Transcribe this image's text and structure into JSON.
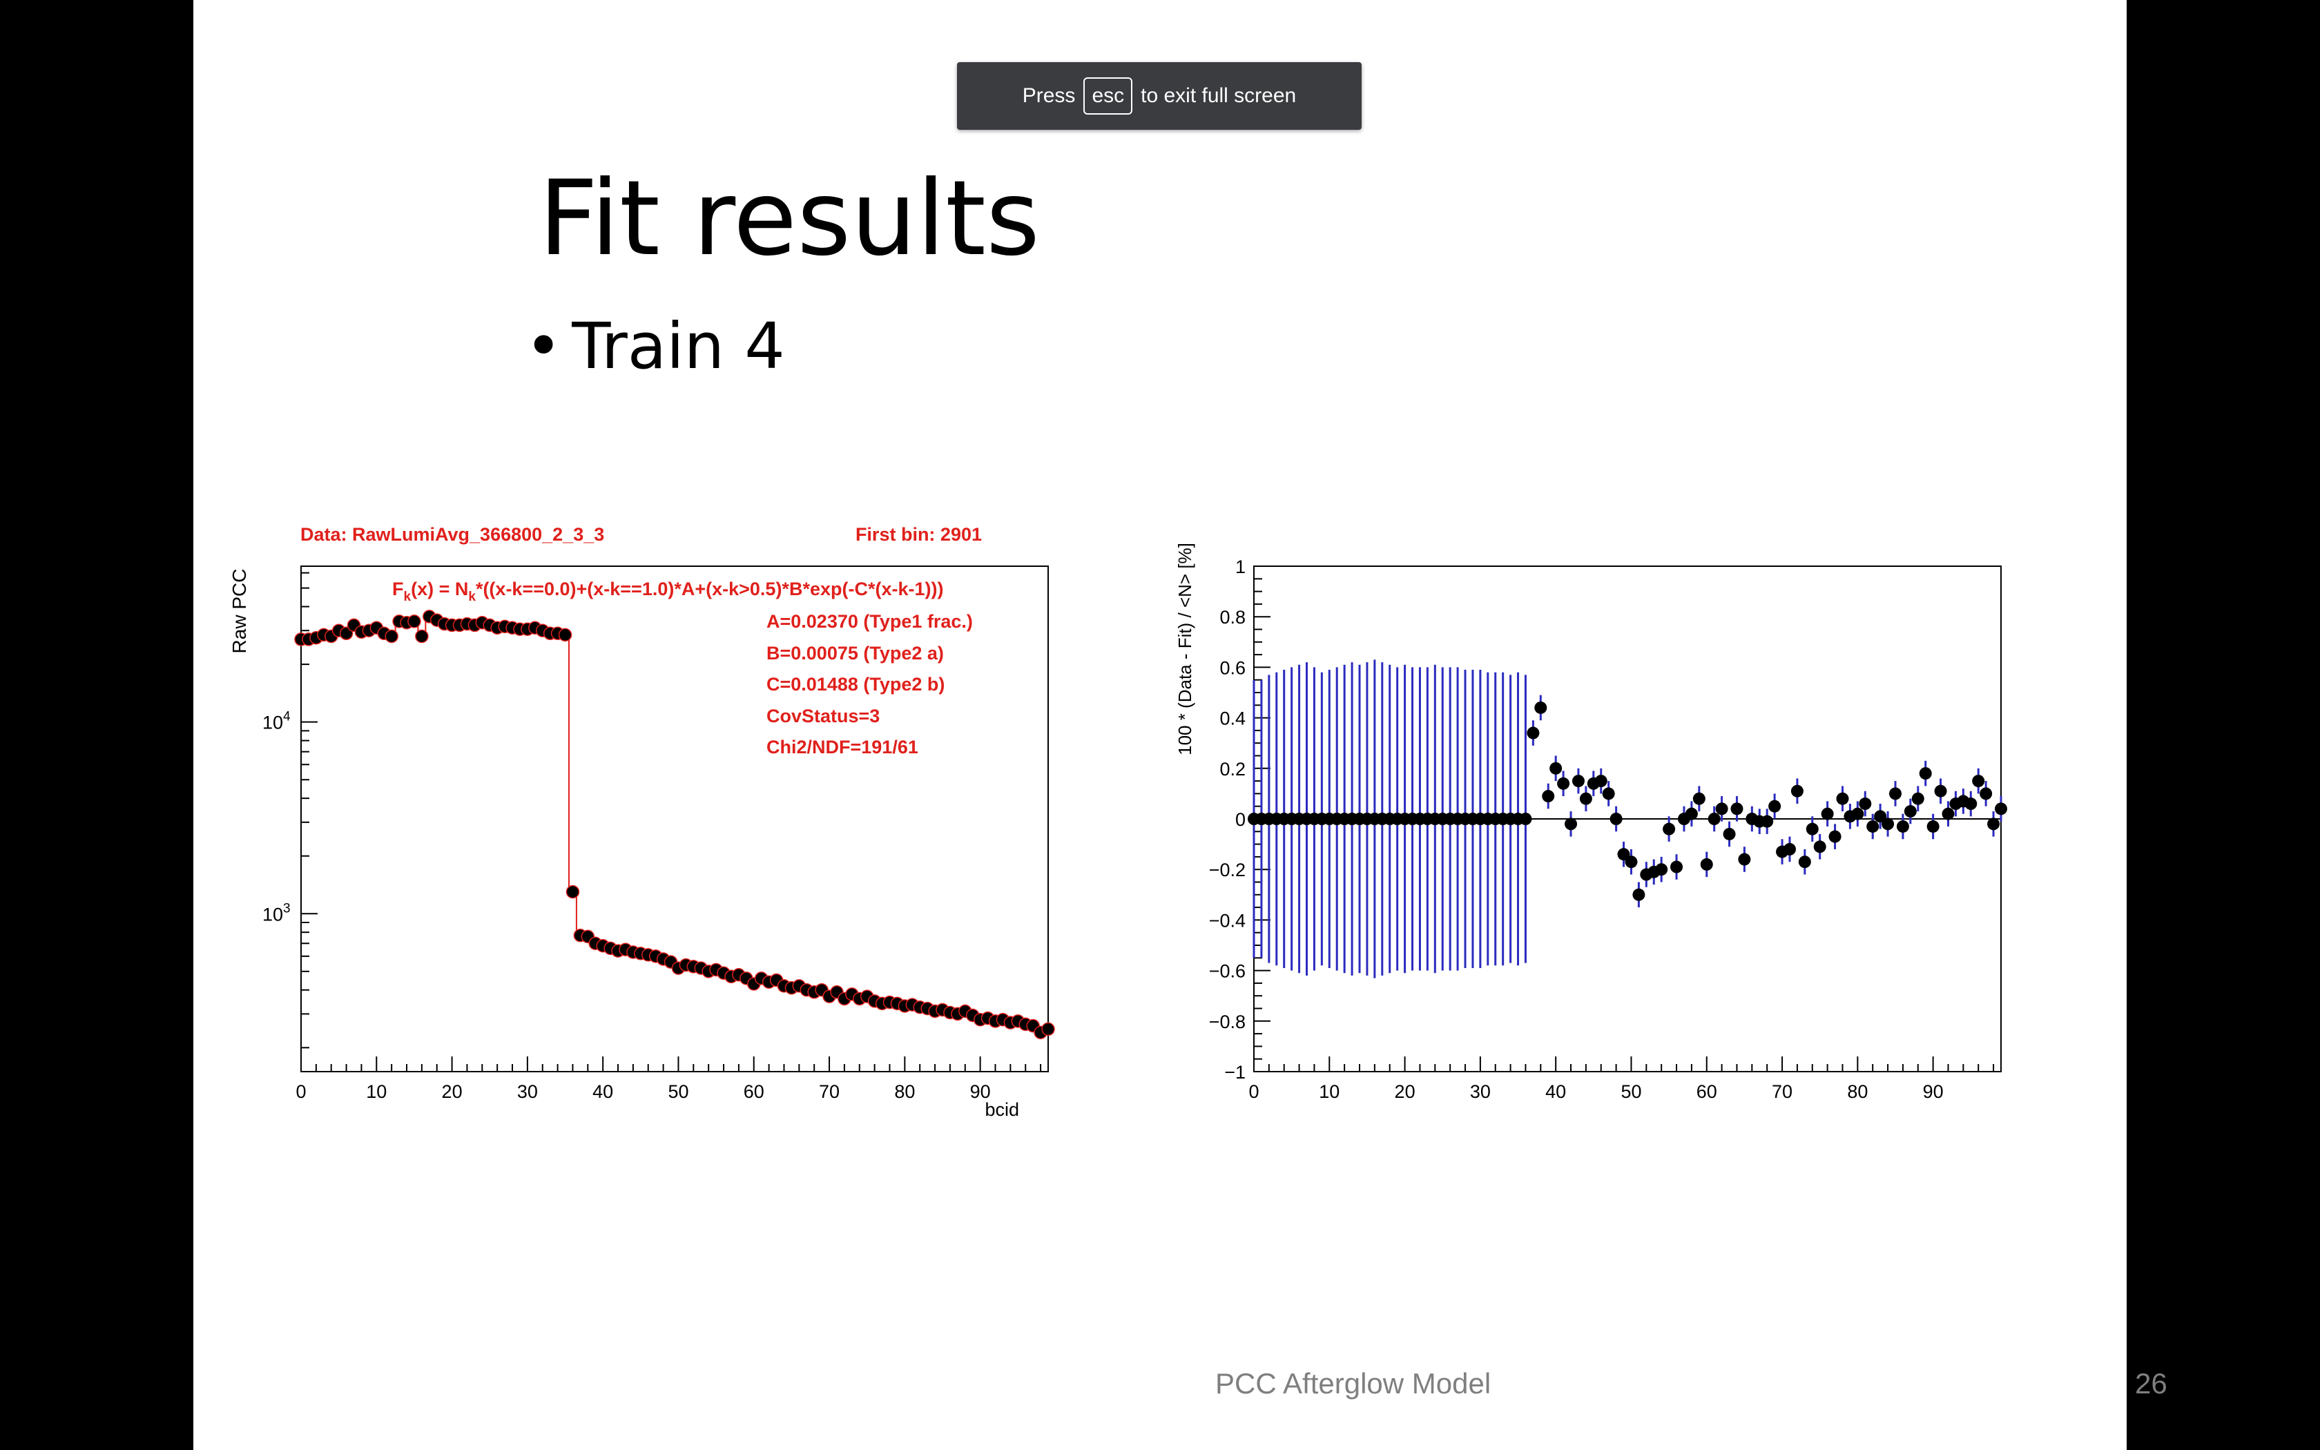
{
  "esc_banner": {
    "prefix": "Press",
    "key": "esc",
    "suffix": "to exit full screen"
  },
  "slide": {
    "title": "Fit results",
    "bullet": "Train 4",
    "footer": "PCC Afterglow Model",
    "page_number": "26"
  },
  "colors": {
    "slide_bg": "#ffffff",
    "letterbox": "#000000",
    "fit_text": "#e0201b",
    "error_bars": "#2b2bbf",
    "markers": "#000000"
  },
  "chart_data": [
    {
      "type": "scatter",
      "title": "Data: RawLumiAvg_366800_2_3_3",
      "subtitle": "First bin: 2901",
      "ylabel": "Raw PCC",
      "xlabel": "bcid",
      "yscale": "log",
      "xlim": [
        0,
        99
      ],
      "ylim": [
        150,
        65000
      ],
      "x_ticks": [
        "0",
        "10",
        "20",
        "30",
        "40",
        "50",
        "60",
        "70",
        "80",
        "90"
      ],
      "y_ticks": [
        {
          "value": 1000,
          "label": "10",
          "exp": "3"
        },
        {
          "value": 10000,
          "label": "10",
          "exp": "4"
        }
      ],
      "fit_formula": {
        "f": "F",
        "fsub": "k",
        "eq": "(x) = N",
        "nsub": "k",
        "rest": "*((x-k==0.0)+(x-k==1.0)*A+(x-k>0.5)*B*exp(-C*(x-k-1)))"
      },
      "fit_params": [
        "A=0.02370 (Type1 frac.)",
        "B=0.00075 (Type2 a)",
        "C=0.01488 (Type2 b)",
        "CovStatus=3",
        "Chi2/NDF=191/61"
      ],
      "series": [
        {
          "x": [
            0,
            1,
            2,
            3,
            4,
            5,
            6,
            7,
            8,
            9,
            10,
            11,
            12,
            13,
            14,
            15,
            16,
            17,
            18,
            19,
            20,
            21,
            22,
            23,
            24,
            25,
            26,
            27,
            28,
            29,
            30,
            31,
            32,
            33,
            34,
            35,
            36,
            37,
            38,
            39,
            40,
            41,
            42,
            43,
            44,
            45,
            46,
            47,
            48,
            49,
            50,
            51,
            52,
            53,
            54,
            55,
            56,
            57,
            58,
            59,
            60,
            61,
            62,
            63,
            64,
            65,
            66,
            67,
            68,
            69,
            70,
            71,
            72,
            73,
            74,
            75,
            76,
            77,
            78,
            79,
            80,
            81,
            82,
            83,
            84,
            85,
            86,
            87,
            88,
            89,
            90,
            91,
            92,
            93,
            94,
            95,
            96,
            97,
            98,
            99
          ],
          "y": [
            27000,
            27000,
            27500,
            28500,
            28000,
            30000,
            29000,
            32000,
            29500,
            30000,
            31000,
            29000,
            28000,
            33500,
            33000,
            33500,
            28000,
            35500,
            34000,
            32500,
            32000,
            32000,
            32500,
            32000,
            33000,
            32000,
            31000,
            31500,
            31000,
            30500,
            30500,
            31000,
            30000,
            29000,
            29000,
            28500,
            1300,
            770,
            760,
            700,
            680,
            660,
            640,
            650,
            630,
            620,
            610,
            600,
            580,
            560,
            520,
            540,
            530,
            520,
            500,
            510,
            490,
            470,
            480,
            460,
            430,
            460,
            440,
            450,
            420,
            410,
            420,
            400,
            390,
            400,
            370,
            390,
            360,
            380,
            360,
            370,
            350,
            340,
            345,
            340,
            330,
            335,
            325,
            320,
            310,
            315,
            305,
            300,
            310,
            295,
            280,
            285,
            275,
            280,
            270,
            275,
            265,
            260,
            240,
            250
          ]
        },
        {
          "name": "fit",
          "x": [
            36,
            37,
            37.5,
            99
          ],
          "y": [
            1300,
            650,
            620,
            255
          ]
        }
      ]
    },
    {
      "type": "scatter",
      "ylabel": "100 * (Data - Fit) / <N>  [%]",
      "xlabel": "bcid",
      "xlim": [
        0,
        99
      ],
      "ylim": [
        -1,
        1
      ],
      "x_ticks": [
        "0",
        "10",
        "20",
        "30",
        "40",
        "50",
        "60",
        "70",
        "80",
        "90"
      ],
      "y_ticks": [
        "1",
        "0.8",
        "0.6",
        "0.4",
        "0.2",
        "0",
        "−0.2",
        "−0.4",
        "−0.6",
        "−0.8",
        "−1"
      ],
      "series": [
        {
          "x": [
            0,
            1,
            2,
            3,
            4,
            5,
            6,
            7,
            8,
            9,
            10,
            11,
            12,
            13,
            14,
            15,
            16,
            17,
            18,
            19,
            20,
            21,
            22,
            23,
            24,
            25,
            26,
            27,
            28,
            29,
            30,
            31,
            32,
            33,
            34,
            35,
            36,
            37,
            38,
            39,
            40,
            41,
            42,
            43,
            44,
            45,
            46,
            47,
            48,
            49,
            50,
            51,
            52,
            53,
            54,
            55,
            56,
            57,
            58,
            59,
            60,
            61,
            62,
            63,
            64,
            65,
            66,
            67,
            68,
            69,
            70,
            71,
            72,
            73,
            74,
            75,
            76,
            77,
            78,
            79,
            80,
            81,
            82,
            83,
            84,
            85,
            86,
            87,
            88,
            89,
            90,
            91,
            92,
            93,
            94,
            95,
            96,
            97,
            98,
            99
          ],
          "y": [
            0,
            0,
            0,
            0,
            0,
            0,
            0,
            0,
            0,
            0,
            0,
            0,
            0,
            0,
            0,
            0,
            0,
            0,
            0,
            0,
            0,
            0,
            0,
            0,
            0,
            0,
            0,
            0,
            0,
            0,
            0,
            0,
            0,
            0,
            0,
            0,
            0,
            0.34,
            0.44,
            0.09,
            0.2,
            0.14,
            -0.02,
            0.15,
            0.08,
            0.14,
            0.15,
            0.1,
            0.0,
            -0.14,
            -0.17,
            -0.3,
            -0.22,
            -0.21,
            -0.2,
            -0.04,
            -0.19,
            0.0,
            0.02,
            0.08,
            -0.18,
            0.0,
            0.04,
            -0.06,
            0.04,
            -0.16,
            0.0,
            -0.01,
            -0.01,
            0.05,
            -0.13,
            -0.12,
            0.11,
            -0.17,
            -0.04,
            -0.11,
            0.02,
            -0.07,
            0.08,
            0.01,
            0.02,
            0.06,
            -0.03,
            0.01,
            -0.02,
            0.1,
            -0.03,
            0.03,
            0.08,
            0.18,
            -0.03,
            0.11,
            0.02,
            0.06,
            0.07,
            0.06,
            0.15,
            0.1,
            -0.02,
            0.04
          ],
          "err_upper": [
            0.55,
            0.55,
            0.57,
            0.58,
            0.59,
            0.6,
            0.61,
            0.62,
            0.6,
            0.58,
            0.59,
            0.6,
            0.61,
            0.62,
            0.61,
            0.62,
            0.63,
            0.62,
            0.61,
            0.6,
            0.61,
            0.6,
            0.6,
            0.6,
            0.61,
            0.6,
            0.6,
            0.6,
            0.59,
            0.59,
            0.59,
            0.58,
            0.58,
            0.58,
            0.57,
            0.58,
            0.57,
            0.05,
            0.05,
            0.05,
            0.05,
            0.05,
            0.05,
            0.05,
            0.05,
            0.05,
            0.05,
            0.05,
            0.05,
            0.05,
            0.05,
            0.05,
            0.05,
            0.05,
            0.05,
            0.05,
            0.05,
            0.05,
            0.05,
            0.05,
            0.05,
            0.05,
            0.05,
            0.05,
            0.05,
            0.05,
            0.05,
            0.05,
            0.05,
            0.05,
            0.05,
            0.05,
            0.05,
            0.05,
            0.05,
            0.05,
            0.05,
            0.05,
            0.05,
            0.05,
            0.05,
            0.05,
            0.05,
            0.05,
            0.05,
            0.05,
            0.05,
            0.05,
            0.05,
            0.05,
            0.05,
            0.05,
            0.05,
            0.05,
            0.05,
            0.05,
            0.05,
            0.05,
            0.05,
            0.05
          ]
        }
      ]
    }
  ]
}
